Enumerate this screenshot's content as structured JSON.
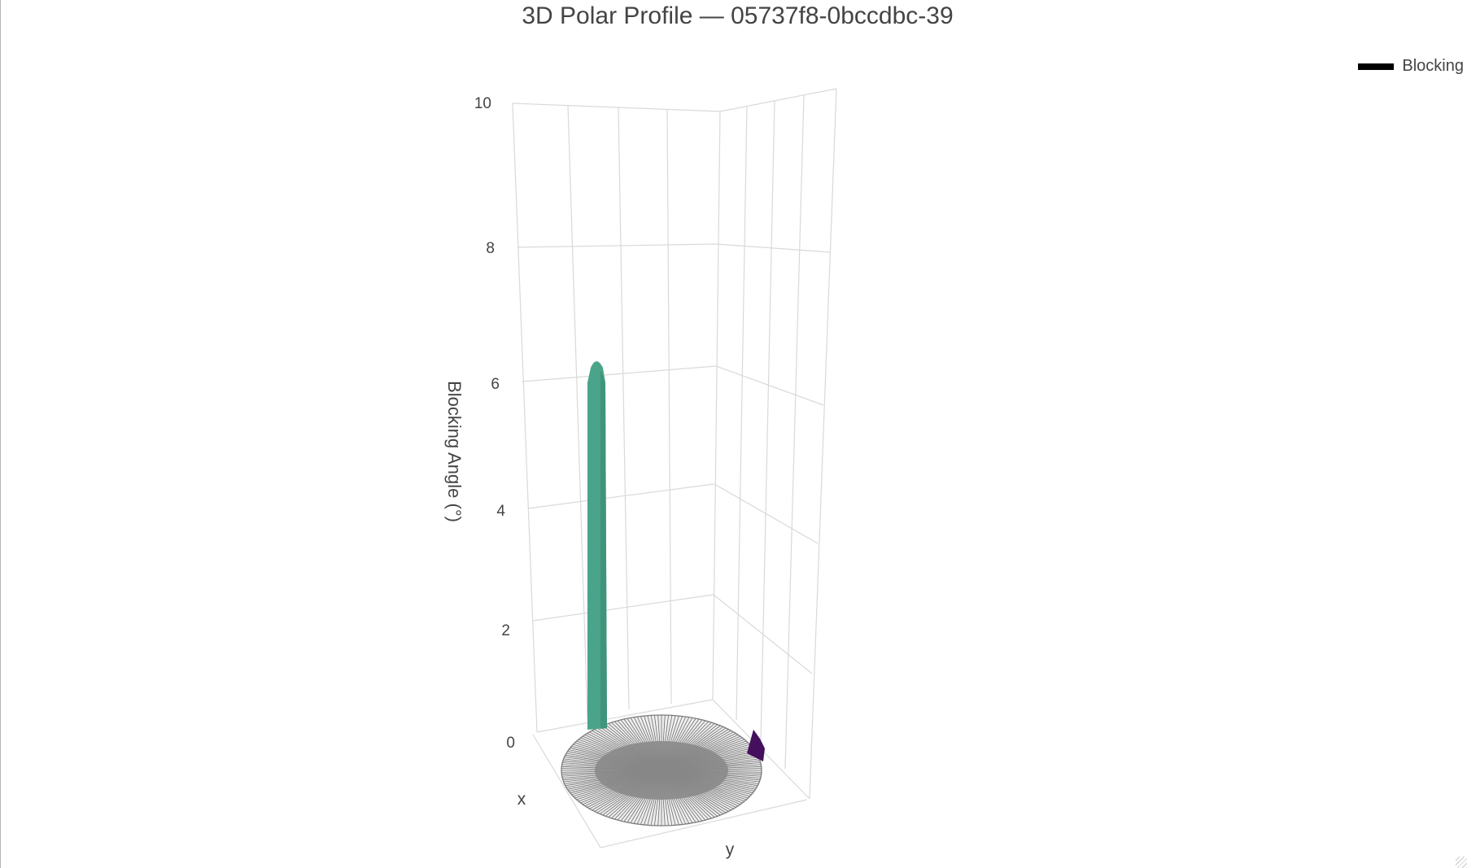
{
  "chart_data": {
    "type": "3d-polar-bar",
    "title": "3D Polar Profile — 05737f8-0bccdbc-39",
    "legend": {
      "placement": "top-right",
      "entries": [
        {
          "name": "Blocking",
          "color": "#000000"
        }
      ]
    },
    "axes": {
      "x": {
        "label": "x"
      },
      "y": {
        "label": "y"
      },
      "z": {
        "label": "Blocking Angle (°)",
        "range": [
          0,
          10
        ],
        "ticks": [
          0,
          2,
          4,
          6,
          8,
          10
        ]
      }
    },
    "grid": true,
    "series": [
      {
        "name": "Blocking",
        "bars": [
          {
            "value": 5.95,
            "color": "#4aa48a"
          },
          {
            "value": 0.2,
            "color": "#440f5c"
          }
        ]
      },
      {
        "base_disk": {
          "color": "#808080"
        }
      }
    ]
  }
}
